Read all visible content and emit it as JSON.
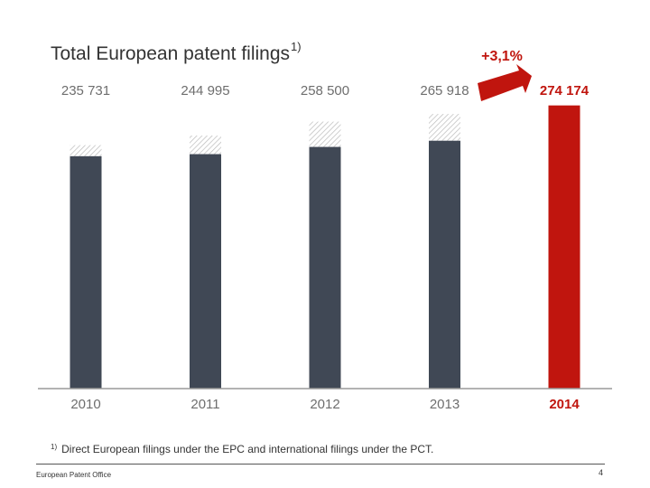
{
  "title": "Total European patent filings",
  "title_footnote_mark": "1)",
  "growth_label": "+3,1%",
  "footnote": {
    "mark": "1)",
    "text": "Direct European filings under the EPC and international filings under the PCT."
  },
  "footer": {
    "organization": "European Patent Office",
    "page_number": "4"
  },
  "colors": {
    "bar": "#404855",
    "highlight": "#c0150e",
    "hatch": "#bbbbbb",
    "label": "#6e6e6e"
  },
  "chart_data": {
    "type": "bar",
    "title": "Total European patent filings",
    "categories": [
      "2010",
      "2011",
      "2012",
      "2013",
      "2014"
    ],
    "values": [
      235731,
      244995,
      258500,
      265918,
      274174
    ],
    "value_labels": [
      "235 731",
      "244 995",
      "258 500",
      "265 918",
      "274 174"
    ],
    "direct_filings_approx": [
      225000,
      227000,
      234000,
      240000,
      274174
    ],
    "highlight_index": 4,
    "growth_annotation": "+3,1%",
    "ylim": [
      0,
      280000
    ],
    "xlabel": "",
    "ylabel": "",
    "grid": false
  }
}
